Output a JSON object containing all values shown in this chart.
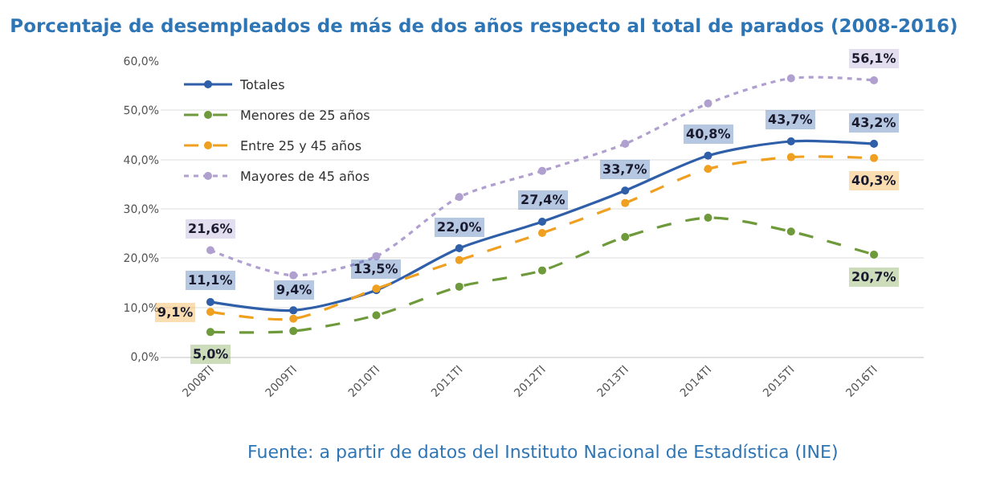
{
  "chart_data": {
    "type": "line",
    "title": "Porcentaje de desempleados de más de dos años respecto al total de parados (2008-2016)",
    "categories": [
      "2008TI",
      "2009TI",
      "2010TI",
      "2011TI",
      "2012TI",
      "2013TI",
      "2014TI",
      "2015TI",
      "2016TI"
    ],
    "series": [
      {
        "name": "Totales",
        "color": "#2e5fa8",
        "line_style": "solid",
        "values": [
          11.1,
          9.4,
          13.5,
          22.0,
          27.4,
          33.7,
          40.8,
          43.7,
          43.2
        ],
        "value_labels": [
          "11,1%",
          "9,4%",
          "13,5%",
          "22,0%",
          "27,4%",
          "33,7%",
          "40,8%",
          "43,7%",
          "43,2%"
        ]
      },
      {
        "name": "Menores de 25 años",
        "color": "#6f9a3c",
        "line_style": "dashed",
        "values": [
          5.0,
          5.2,
          8.4,
          14.2,
          17.5,
          24.3,
          28.2,
          25.4,
          20.7
        ],
        "value_labels": [
          "5,0%",
          null,
          null,
          null,
          null,
          null,
          null,
          null,
          "20,7%"
        ]
      },
      {
        "name": "Entre 25 y 45 años",
        "color": "#f0a020",
        "line_style": "dashed",
        "values": [
          9.1,
          7.7,
          13.8,
          19.6,
          25.1,
          31.2,
          38.1,
          40.5,
          40.3
        ],
        "value_labels": [
          "9,1%",
          null,
          null,
          null,
          null,
          null,
          null,
          null,
          "40,3%"
        ]
      },
      {
        "name": "Mayores de 45 años",
        "color": "#b0a0d0",
        "line_style": "dotted",
        "values": [
          21.6,
          16.5,
          20.4,
          32.4,
          37.7,
          43.2,
          51.4,
          56.5,
          56.1
        ],
        "value_labels": [
          "21,6%",
          null,
          null,
          null,
          null,
          null,
          null,
          null,
          "56,1%"
        ]
      }
    ],
    "ylim": [
      0,
      60
    ],
    "yticks": [
      {
        "value": 0,
        "label": "0,0%"
      },
      {
        "value": 10,
        "label": "10,0%"
      },
      {
        "value": 20,
        "label": "20,0%"
      },
      {
        "value": 30,
        "label": "30,0%"
      },
      {
        "value": 40,
        "label": "40,0%"
      },
      {
        "value": 50,
        "label": "50,0%"
      },
      {
        "value": 60,
        "label": "60,0%"
      }
    ],
    "grid": "y",
    "legend": "top left",
    "marker": "circle",
    "annotations": [
      "Fuente: a partir de datos del Instituto Nacional de Estadística (INE)"
    ]
  }
}
